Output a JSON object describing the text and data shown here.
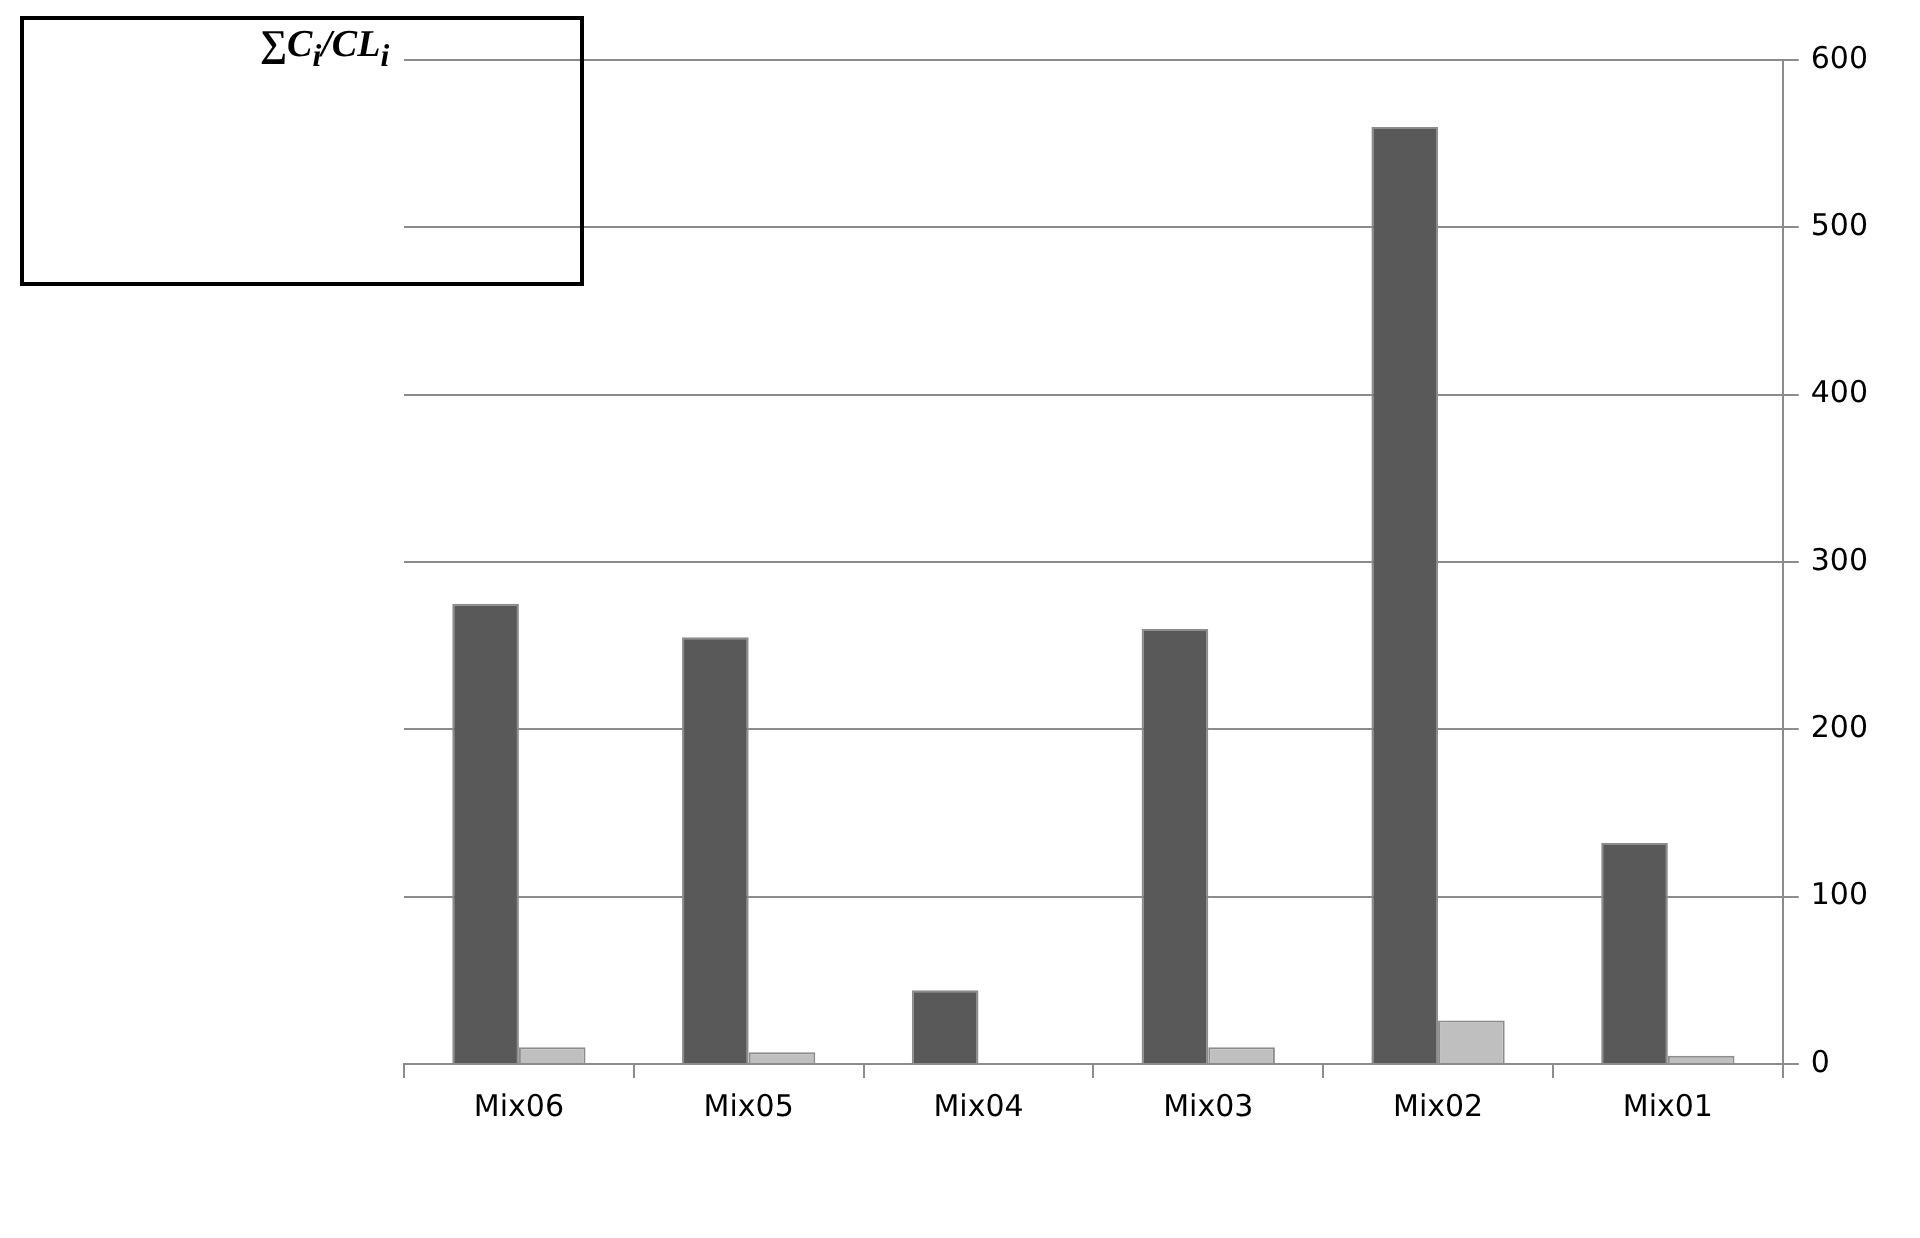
{
  "chart_data": {
    "type": "bar",
    "title": "∑C$_{i}$/CL$_{i}$",
    "categories": [
      "Mix06",
      "Mix05",
      "Mix04",
      "Mix03",
      "Mix02",
      "Mix01"
    ],
    "series": [
      {
        "color": "#595959",
        "values": [
          275,
          255,
          44,
          260,
          560,
          132
        ]
      },
      {
        "color": "#bfbfbf",
        "values": [
          10,
          7,
          0,
          10,
          26,
          5
        ]
      }
    ],
    "ylim": [
      0,
      600
    ],
    "yticks": [
      0,
      100,
      200,
      300,
      400,
      500,
      600
    ],
    "grid": "y",
    "legend": false
  }
}
